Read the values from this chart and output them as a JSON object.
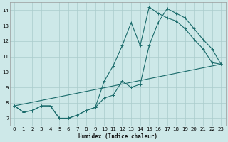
{
  "bg_color": "#cde8e8",
  "grid_color": "#aacccc",
  "line_color": "#1a6b6b",
  "xlabel": "Humidex (Indice chaleur)",
  "xlim": [
    -0.5,
    23.5
  ],
  "ylim": [
    6.5,
    14.5
  ],
  "xticks": [
    0,
    1,
    2,
    3,
    4,
    5,
    6,
    7,
    8,
    9,
    10,
    11,
    12,
    13,
    14,
    15,
    16,
    17,
    18,
    19,
    20,
    21,
    22,
    23
  ],
  "yticks": [
    7,
    8,
    9,
    10,
    11,
    12,
    13,
    14
  ],
  "line1_x": [
    0,
    1,
    2,
    3,
    4,
    5,
    6,
    7,
    8,
    9,
    10,
    11,
    12,
    13,
    14,
    15,
    16,
    17,
    18,
    19,
    20,
    21,
    22,
    23
  ],
  "line1_y": [
    7.8,
    7.4,
    7.5,
    7.8,
    7.8,
    7.0,
    7.0,
    7.2,
    7.5,
    7.7,
    9.4,
    10.4,
    11.7,
    13.2,
    11.7,
    14.2,
    13.8,
    13.5,
    13.3,
    12.8,
    12.1,
    11.5,
    10.6,
    10.5
  ],
  "line2_x": [
    0,
    1,
    2,
    3,
    4,
    5,
    6,
    7,
    8,
    9,
    10,
    11,
    12,
    13,
    14,
    15,
    16,
    17,
    18,
    19,
    20,
    21,
    22,
    23
  ],
  "line2_y": [
    7.8,
    7.4,
    7.5,
    7.8,
    7.8,
    7.0,
    7.0,
    7.2,
    7.5,
    7.7,
    8.3,
    8.5,
    9.4,
    9.0,
    9.2,
    11.7,
    13.2,
    14.1,
    13.8,
    13.5,
    12.8,
    12.1,
    11.5,
    10.5
  ],
  "line3_x": [
    0,
    23
  ],
  "line3_y": [
    7.8,
    10.5
  ],
  "figsize": [
    3.2,
    2.0
  ],
  "dpi": 100
}
